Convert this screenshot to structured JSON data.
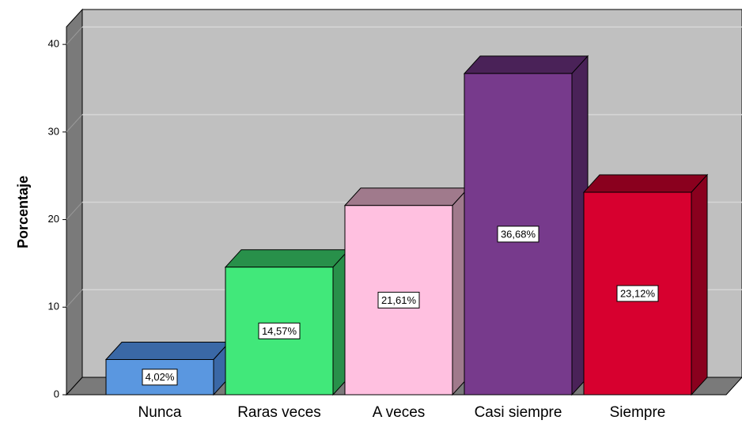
{
  "chart_data": {
    "type": "bar3d",
    "y_label": "Porcentaje",
    "categories": [
      "Nunca",
      "Raras veces",
      "A veces",
      "Casi siempre",
      "Siempre"
    ],
    "values": [
      4.02,
      14.57,
      21.61,
      36.68,
      23.12
    ],
    "value_labels": [
      "4,02%",
      "14,57%",
      "21,61%",
      "36,68%",
      "23,12%"
    ],
    "colors": [
      "#5a97e0",
      "#41e87a",
      "#ffc0e0",
      "#773a8c",
      "#d7002f"
    ],
    "side_colors": [
      "#3a68a6",
      "#28904a",
      "#a07a8c",
      "#4a2258",
      "#8a001e"
    ],
    "ylim": [
      0,
      42
    ],
    "yticks": [
      0,
      10,
      20,
      30,
      40
    ],
    "grid": true
  }
}
